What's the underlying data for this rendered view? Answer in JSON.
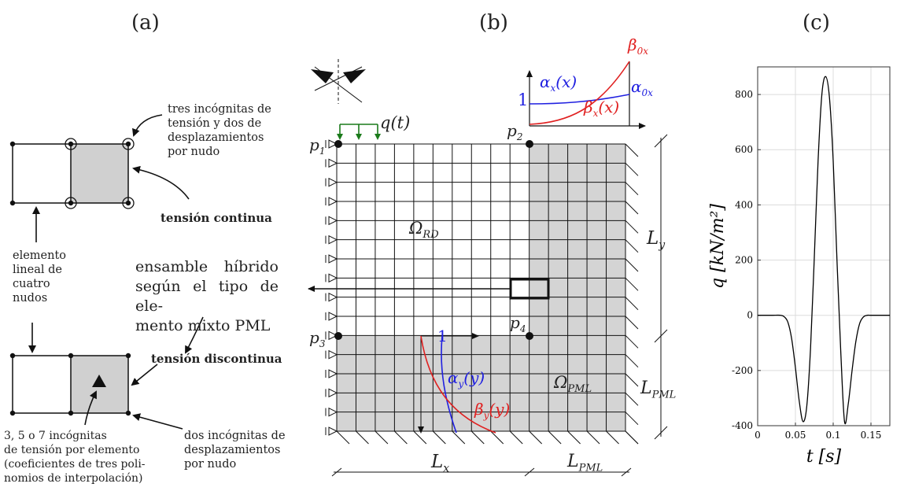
{
  "panels": {
    "a": {
      "label": "(a)"
    },
    "b": {
      "label": "(b)"
    },
    "c": {
      "label": "(c)"
    }
  },
  "panel_a": {
    "top_note": [
      "tres incógnitas de",
      "tensión y dos de",
      "desplazamientos",
      "por nudo"
    ],
    "tension_continua": "tensión continua",
    "elemento_lineal": [
      "elemento",
      "lineal de",
      "cuatro",
      "nudos"
    ],
    "ensamble": [
      "ensamble híbrido",
      "según el tipo de ele-",
      "mento mixto PML"
    ],
    "tension_discontinua": "tensión discontinua",
    "bottom_left_note": [
      "3, 5 o 7 incógnitas",
      "de tensión por elemento",
      "(coeficientes de tres poli-",
      "nomios de interpolación)"
    ],
    "bottom_right_note": [
      "dos incógnitas de",
      "desplazamientos",
      "por nudo"
    ]
  },
  "panel_b": {
    "load": "q(t)",
    "p1": "p",
    "p1_sub": "1",
    "p2": "p",
    "p2_sub": "2",
    "p3": "p",
    "p3_sub": "3",
    "p4": "p",
    "p4_sub": "4",
    "omega_rd": "Ω",
    "omega_rd_sub": "RD",
    "omega_pml": "Ω",
    "omega_pml_sub": "PML",
    "ly": "L",
    "ly_sub": "y",
    "lpml_v": "L",
    "lpml_v_sub": "PML",
    "lx": "L",
    "lx_sub": "x",
    "lpml_h": "L",
    "lpml_h_sub": "PML",
    "inset": {
      "one": "1",
      "alpha_x": "α",
      "alpha_x_sub": "x",
      "alpha_x_arg": "(x)",
      "alpha_0x": "α",
      "alpha_0x_sub": "0x",
      "beta_0x": "β",
      "beta_0x_sub": "0x",
      "beta_x": "β",
      "beta_x_sub": "x",
      "beta_x_arg": "(x)"
    },
    "lower_inset": {
      "one": "1",
      "alpha_y": "α",
      "alpha_y_sub": "y",
      "alpha_y_arg": "(y)",
      "beta_y": "β",
      "beta_y_sub": "y",
      "beta_y_arg": "(y)"
    },
    "colors": {
      "alpha": "#2020e0",
      "beta": "#e02020",
      "load": "#1a7a1a",
      "pml_fill": "#d4d4d4"
    }
  },
  "chart_data": {
    "type": "line",
    "xlabel": "t [s]",
    "ylabel": "q [kN/m²]",
    "xlim": [
      0,
      0.175
    ],
    "ylim": [
      -400,
      900
    ],
    "xticks": [
      0,
      0.05,
      0.1,
      0.15
    ],
    "xtick_labels": [
      "0",
      "0.05",
      "0.1",
      "0.15"
    ],
    "yticks": [
      -400,
      -200,
      0,
      200,
      400,
      600,
      800
    ],
    "grid": true,
    "series": [
      {
        "x": [
          0,
          0.01,
          0.02,
          0.03,
          0.035,
          0.04,
          0.045,
          0.05,
          0.055,
          0.06,
          0.065,
          0.07,
          0.075,
          0.08,
          0.085,
          0.09,
          0.095,
          0.1,
          0.105,
          0.11,
          0.115,
          0.12,
          0.125,
          0.13,
          0.135,
          0.14,
          0.145,
          0.15,
          0.16,
          0.175
        ],
        "y": [
          0,
          0,
          0,
          0,
          -5,
          -25,
          -85,
          -190,
          -310,
          -385,
          -330,
          -120,
          210,
          560,
          800,
          865,
          790,
          560,
          200,
          -130,
          -385,
          -320,
          -200,
          -95,
          -30,
          -6,
          0,
          0,
          0,
          0
        ]
      }
    ]
  }
}
